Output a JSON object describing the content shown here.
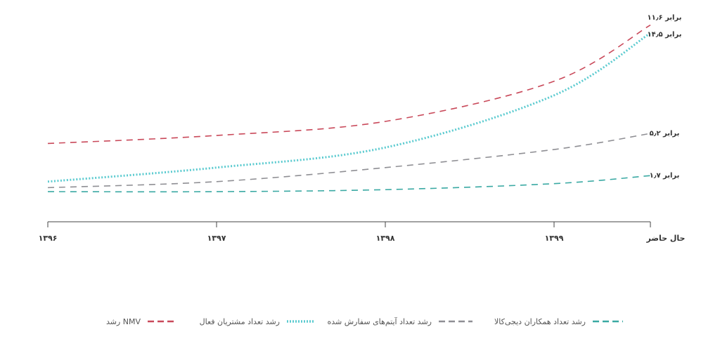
{
  "chart_data": {
    "type": "line",
    "title": "",
    "xlabel": "",
    "ylabel": "",
    "categories": [
      "۱۳۹۶",
      "۱۳۹۷",
      "۱۳۹۸",
      "۱۳۹۹",
      "حال حاضر"
    ],
    "ylim": [
      0,
      100
    ],
    "grid": false,
    "legend_position": "bottom",
    "series": [
      {
        "name": "رشد NMV",
        "color": "#c9495a",
        "style": "dashed",
        "values": [
          39,
          43,
          50,
          70,
          98
        ],
        "end_label": "۱۱٫۶ برابر"
      },
      {
        "name": "رشد تعداد مشتریان فعال",
        "color": "#5ccbd0",
        "style": "dotted",
        "values": [
          20,
          27,
          37,
          63,
          94
        ],
        "end_label": "۱۴٫۵ برابر"
      },
      {
        "name": "رشد تعداد آیتم‌های سفارش شده",
        "color": "#8f8f94",
        "style": "dashed",
        "values": [
          17,
          20,
          27,
          36,
          44
        ],
        "end_label": "۵٫۲ برابر"
      },
      {
        "name": "رشد تعداد همکاران دیجی‌کالا",
        "color": "#3aa9a3",
        "style": "dashed",
        "values": [
          15,
          15,
          16,
          19,
          23
        ],
        "end_label": "۱٫۷ برابر"
      }
    ]
  }
}
